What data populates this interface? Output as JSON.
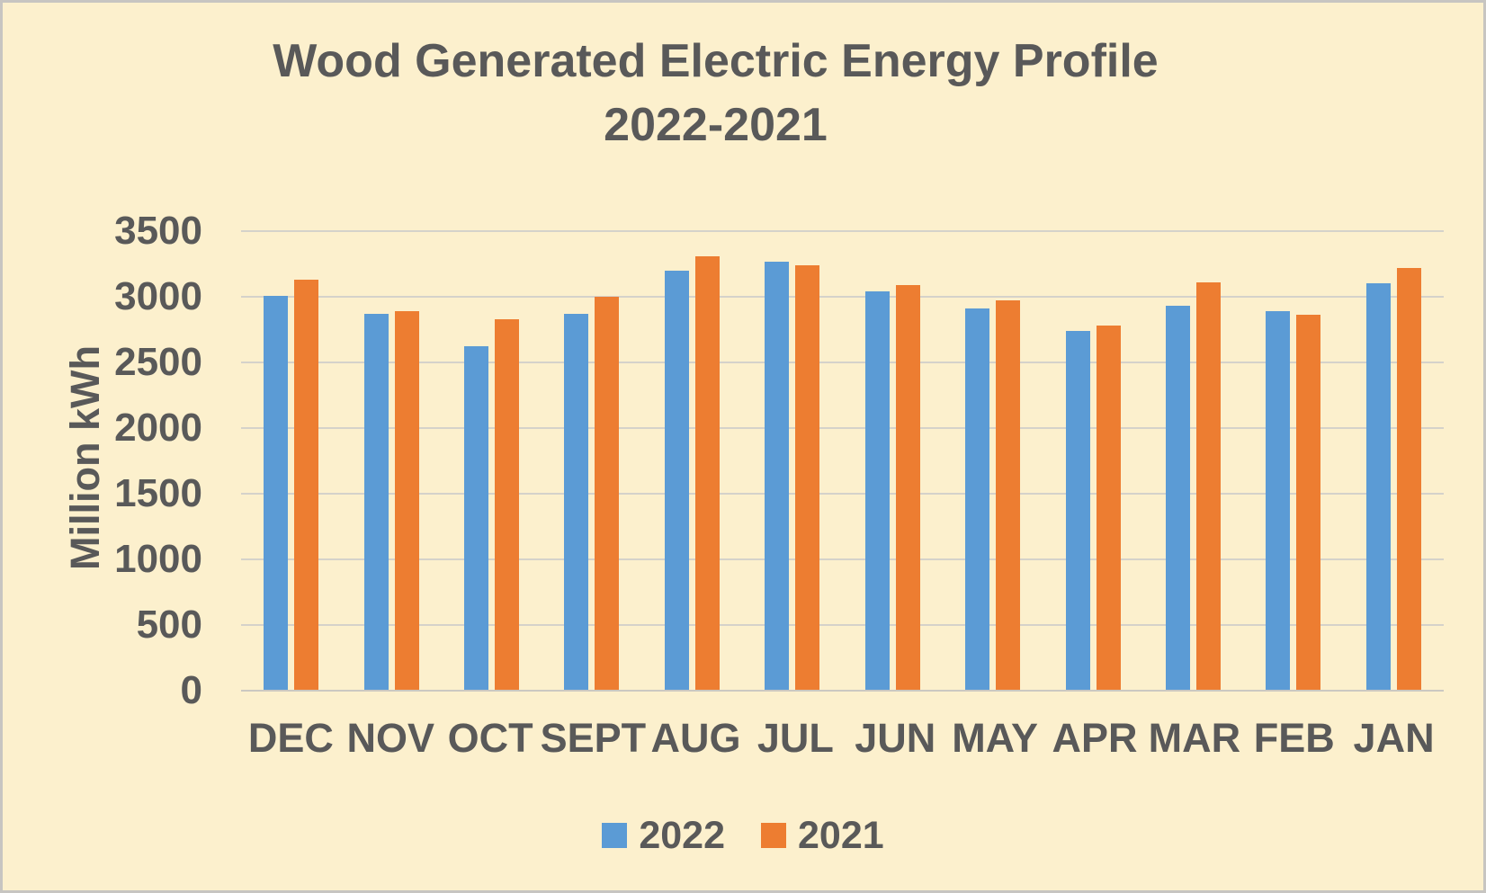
{
  "window": {
    "background": "#FCF0CD",
    "border_color": "#C7C5C1",
    "text_color": "#595959"
  },
  "chart_data": {
    "type": "bar",
    "title": "Wood Generated Electric Energy Profile",
    "subtitle": "2022-2021",
    "ylabel": "Million kWh",
    "xlabel": "",
    "categories": [
      "DEC",
      "NOV",
      "OCT",
      "SEPT",
      "AUG",
      "JUL",
      "JUN",
      "MAY",
      "APR",
      "MAR",
      "FEB",
      "JAN"
    ],
    "series": [
      {
        "name": "2022",
        "color": "#5B9BD5",
        "values": [
          3010,
          2870,
          2620,
          2870,
          3200,
          3270,
          3040,
          2910,
          2740,
          2930,
          2890,
          3100
        ]
      },
      {
        "name": "2021",
        "color": "#ED7D31",
        "values": [
          3130,
          2890,
          2830,
          3000,
          3310,
          3240,
          3090,
          2970,
          2780,
          3110,
          2860,
          3220
        ]
      }
    ],
    "ylim": [
      0,
      3500
    ],
    "yticks": [
      0,
      500,
      1000,
      1500,
      2000,
      2500,
      3000,
      3500
    ],
    "grid": true,
    "legend_position": "bottom",
    "gridline_color": "#D5D2CA"
  }
}
